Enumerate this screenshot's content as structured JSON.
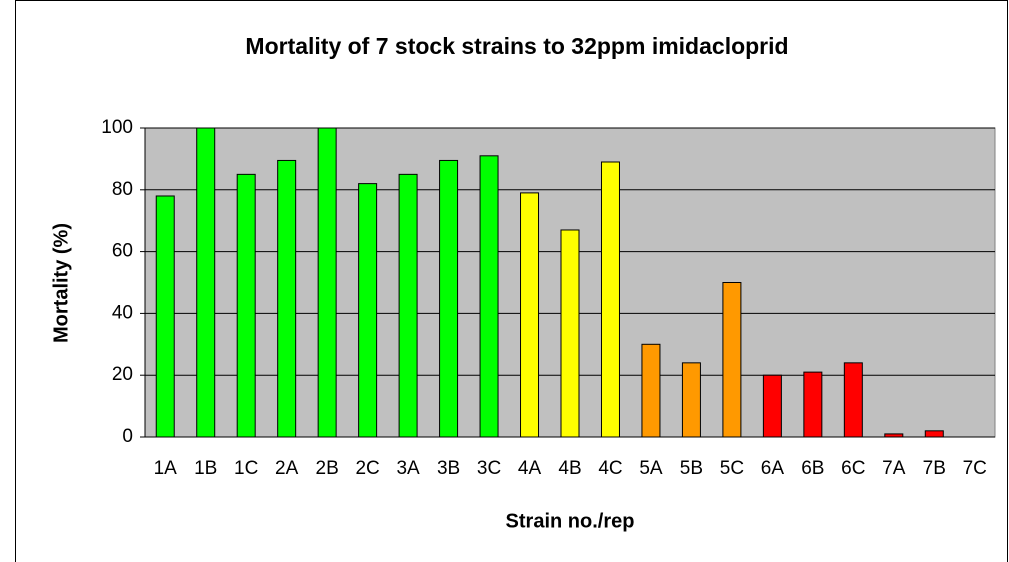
{
  "chart_data": {
    "type": "bar",
    "title": "Mortality of 7 stock strains to 32ppm imidacloprid",
    "x_label": "Strain no./rep",
    "y_label": "Mortality (%)",
    "categories": [
      "1A",
      "1B",
      "1C",
      "2A",
      "2B",
      "2C",
      "3A",
      "3B",
      "3C",
      "4A",
      "4B",
      "4C",
      "5A",
      "5B",
      "5C",
      "6A",
      "6B",
      "6C",
      "7A",
      "7B",
      "7C"
    ],
    "values": [
      78,
      100,
      85,
      89.5,
      100,
      82,
      85,
      89.5,
      91,
      79,
      67,
      89,
      30,
      24,
      50,
      20,
      21,
      24,
      1,
      2,
      0
    ],
    "colors": [
      "#00ff00",
      "#00ff00",
      "#00ff00",
      "#00ff00",
      "#00ff00",
      "#00ff00",
      "#00ff00",
      "#00ff00",
      "#00ff00",
      "#ffff00",
      "#ffff00",
      "#ffff00",
      "#ff9900",
      "#ff9900",
      "#ff9900",
      "#ff0000",
      "#ff0000",
      "#ff0000",
      "#ff0000",
      "#ff0000",
      "#ff0000"
    ],
    "ylim": [
      0,
      100
    ],
    "yticks": [
      0,
      20,
      40,
      60,
      80,
      100
    ],
    "grid": true
  }
}
